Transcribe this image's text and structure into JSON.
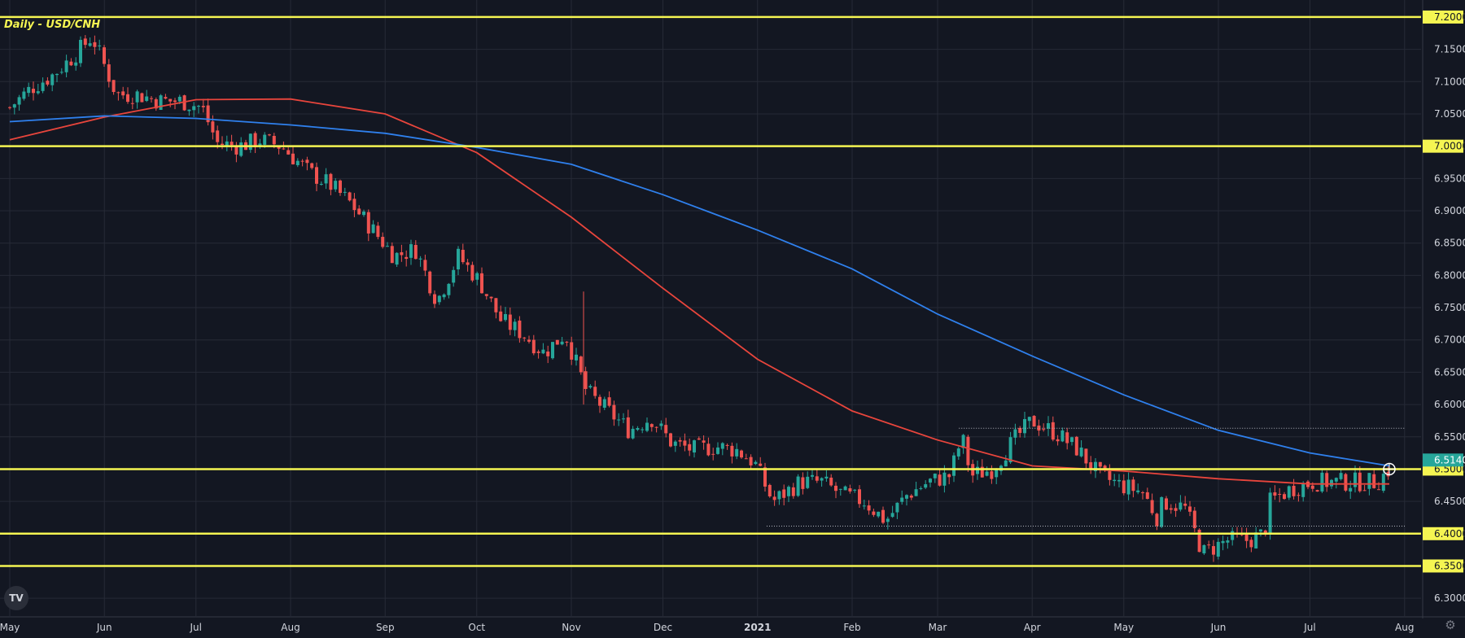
{
  "chart_title": "Daily - USD/CNH",
  "logo_text": "TV",
  "colors": {
    "background": "#131722",
    "grid": "#262a36",
    "up_candle": "#26a69a",
    "down_candle": "#ef5350",
    "ma_fast": "#e8453c",
    "ma_slow": "#2f80ed",
    "level_lines": "#f5f552",
    "price_badge": "#26a69a",
    "axis_text": "#d1d4dc"
  },
  "chart_data": {
    "type": "candlestick",
    "title": "Daily - USD/CNH",
    "x_ticks": [
      "May",
      "Jun",
      "Jul",
      "Aug",
      "Sep",
      "Oct",
      "Nov",
      "Dec",
      "2021",
      "Feb",
      "Mar",
      "Apr",
      "May",
      "Jun",
      "Jul",
      "Aug"
    ],
    "y_ticks": [
      "7.20000",
      "7.15000",
      "7.10000",
      "7.05000",
      "7.00000",
      "6.95000",
      "6.90000",
      "6.85000",
      "6.80000",
      "6.75000",
      "6.70000",
      "6.65000",
      "6.60000",
      "6.55000",
      "6.50000",
      "6.45000",
      "6.40000",
      "6.35000",
      "6.30000"
    ],
    "ylim": [
      6.275,
      7.21
    ],
    "horizontal_levels": [
      7.2,
      7.0,
      6.5,
      6.4,
      6.35
    ],
    "price_label": "6.51402",
    "dotted_levels": [
      {
        "value": 6.5632,
        "from": "2021-03-08",
        "to": "2021-07-27"
      },
      {
        "value": 6.4117,
        "from": "2021-01-04",
        "to": "2021-07-27"
      }
    ],
    "close_path": [
      [
        "2020-05-01",
        7.06
      ],
      [
        "2020-05-08",
        7.09
      ],
      [
        "2020-05-15",
        7.11
      ],
      [
        "2020-05-22",
        7.14
      ],
      [
        "2020-05-28",
        7.17
      ],
      [
        "2020-06-05",
        7.08
      ],
      [
        "2020-06-12",
        7.08
      ],
      [
        "2020-06-19",
        7.07
      ],
      [
        "2020-06-26",
        7.07
      ],
      [
        "2020-07-03",
        7.06
      ],
      [
        "2020-07-08",
        7.005
      ],
      [
        "2020-07-15",
        7.0
      ],
      [
        "2020-07-22",
        7.01
      ],
      [
        "2020-07-29",
        7.0
      ],
      [
        "2020-08-07",
        6.96
      ],
      [
        "2020-08-14",
        6.94
      ],
      [
        "2020-08-21",
        6.91
      ],
      [
        "2020-08-28",
        6.87
      ],
      [
        "2020-09-04",
        6.83
      ],
      [
        "2020-09-11",
        6.84
      ],
      [
        "2020-09-18",
        6.76
      ],
      [
        "2020-09-25",
        6.83
      ],
      [
        "2020-10-02",
        6.79
      ],
      [
        "2020-10-09",
        6.73
      ],
      [
        "2020-10-16",
        6.71
      ],
      [
        "2020-10-23",
        6.68
      ],
      [
        "2020-10-30",
        6.71
      ],
      [
        "2020-11-06",
        6.62
      ],
      [
        "2020-11-13",
        6.59
      ],
      [
        "2020-11-20",
        6.56
      ],
      [
        "2020-11-27",
        6.58
      ],
      [
        "2020-12-04",
        6.54
      ],
      [
        "2020-12-11",
        6.53
      ],
      [
        "2020-12-18",
        6.535
      ],
      [
        "2020-12-25",
        6.53
      ],
      [
        "2020-12-31",
        6.51
      ],
      [
        "2021-01-06",
        6.45
      ],
      [
        "2021-01-15",
        6.48
      ],
      [
        "2021-01-22",
        6.48
      ],
      [
        "2021-01-29",
        6.46
      ],
      [
        "2021-02-05",
        6.45
      ],
      [
        "2021-02-12",
        6.42
      ],
      [
        "2021-02-19",
        6.46
      ],
      [
        "2021-02-26",
        6.48
      ],
      [
        "2021-03-05",
        6.49
      ],
      [
        "2021-03-09",
        6.55
      ],
      [
        "2021-03-12",
        6.49
      ],
      [
        "2021-03-19",
        6.5
      ],
      [
        "2021-03-26",
        6.545
      ],
      [
        "2021-04-01",
        6.575
      ],
      [
        "2021-04-09",
        6.555
      ],
      [
        "2021-04-16",
        6.53
      ],
      [
        "2021-04-23",
        6.49
      ],
      [
        "2021-04-30",
        6.475
      ],
      [
        "2021-05-07",
        6.465
      ],
      [
        "2021-05-12",
        6.425
      ],
      [
        "2021-05-14",
        6.45
      ],
      [
        "2021-05-21",
        6.44
      ],
      [
        "2021-05-27",
        6.37
      ],
      [
        "2021-06-04",
        6.39
      ],
      [
        "2021-06-11",
        6.39
      ],
      [
        "2021-06-16",
        6.4
      ],
      [
        "2021-06-18",
        6.45
      ],
      [
        "2021-06-25",
        6.47
      ],
      [
        "2021-07-02",
        6.48
      ],
      [
        "2021-07-09",
        6.48
      ],
      [
        "2021-07-16",
        6.48
      ],
      [
        "2021-07-23",
        6.48
      ],
      [
        "2021-07-27",
        6.5
      ]
    ],
    "series": [
      {
        "name": "",
        "color": "#e8453c",
        "points": [
          [
            "2020-05-01",
            7.01
          ],
          [
            "2020-06-01",
            7.045
          ],
          [
            "2020-07-01",
            7.072
          ],
          [
            "2020-08-01",
            7.073
          ],
          [
            "2020-09-01",
            7.05
          ],
          [
            "2020-10-01",
            6.99
          ],
          [
            "2020-11-01",
            6.89
          ],
          [
            "2020-12-01",
            6.78
          ],
          [
            "2021-01-01",
            6.67
          ],
          [
            "2021-02-01",
            6.59
          ],
          [
            "2021-03-01",
            6.545
          ],
          [
            "2021-04-01",
            6.505
          ],
          [
            "2021-05-01",
            6.497
          ],
          [
            "2021-06-01",
            6.485
          ],
          [
            "2021-07-01",
            6.477
          ],
          [
            "2021-07-27",
            6.477
          ]
        ]
      },
      {
        "name": "",
        "color": "#2f80ed",
        "points": [
          [
            "2020-05-01",
            7.038
          ],
          [
            "2020-06-01",
            7.047
          ],
          [
            "2020-07-01",
            7.043
          ],
          [
            "2020-08-01",
            7.033
          ],
          [
            "2020-09-01",
            7.02
          ],
          [
            "2020-10-01",
            6.998
          ],
          [
            "2020-11-01",
            6.972
          ],
          [
            "2020-12-01",
            6.925
          ],
          [
            "2021-01-01",
            6.87
          ],
          [
            "2021-02-01",
            6.81
          ],
          [
            "2021-03-01",
            6.74
          ],
          [
            "2021-04-01",
            6.675
          ],
          [
            "2021-05-01",
            6.615
          ],
          [
            "2021-06-01",
            6.56
          ],
          [
            "2021-07-01",
            6.525
          ],
          [
            "2021-07-27",
            6.505
          ]
        ]
      }
    ],
    "grid": true,
    "legend": "none"
  }
}
